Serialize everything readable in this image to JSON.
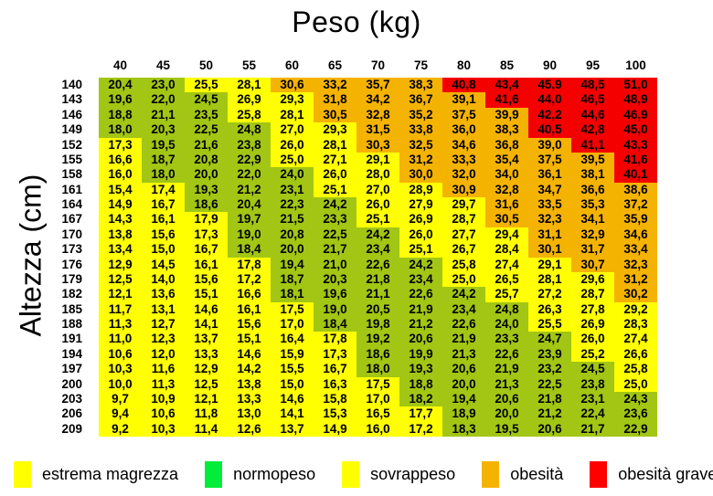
{
  "page": {
    "title": "Peso (kg)",
    "y_axis_label": "Altezza (cm)"
  },
  "chart_data": {
    "type": "heatmap",
    "title": "Peso (kg)",
    "xlabel": "Peso (kg)",
    "ylabel": "Altezza (cm)",
    "legend_position": "bottom",
    "grid": false,
    "columns": [
      40,
      45,
      50,
      55,
      60,
      65,
      70,
      75,
      80,
      85,
      90,
      95,
      100
    ],
    "rows": [
      140,
      143,
      146,
      149,
      152,
      155,
      158,
      161,
      164,
      167,
      170,
      173,
      176,
      179,
      182,
      185,
      188,
      191,
      194,
      197,
      200,
      203,
      206,
      209
    ],
    "values": [
      [
        "20,4",
        "23,0",
        "25,5",
        "28,1",
        "30,6",
        "33,2",
        "35,7",
        "38,3",
        "40,8",
        "43,4",
        "45,9",
        "48,5",
        "51,0"
      ],
      [
        "19,6",
        "22,0",
        "24,5",
        "26,9",
        "29,3",
        "31,8",
        "34,2",
        "36,7",
        "39,1",
        "41,6",
        "44,0",
        "46,5",
        "48,9"
      ],
      [
        "18,8",
        "21,1",
        "23,5",
        "25,8",
        "28,1",
        "30,5",
        "32,8",
        "35,2",
        "37,5",
        "39,9",
        "42,2",
        "44,6",
        "46,9"
      ],
      [
        "18,0",
        "20,3",
        "22,5",
        "24,8",
        "27,0",
        "29,3",
        "31,5",
        "33,8",
        "36,0",
        "38,3",
        "40,5",
        "42,8",
        "45,0"
      ],
      [
        "17,3",
        "19,5",
        "21,6",
        "23,8",
        "26,0",
        "28,1",
        "30,3",
        "32,5",
        "34,6",
        "36,8",
        "39,0",
        "41,1",
        "43,3"
      ],
      [
        "16,6",
        "18,7",
        "20,8",
        "22,9",
        "25,0",
        "27,1",
        "29,1",
        "31,2",
        "33,3",
        "35,4",
        "37,5",
        "39,5",
        "41,6"
      ],
      [
        "16,0",
        "18,0",
        "20,0",
        "22,0",
        "24,0",
        "26,0",
        "28,0",
        "30,0",
        "32,0",
        "34,0",
        "36,1",
        "38,1",
        "40,1"
      ],
      [
        "15,4",
        "17,4",
        "19,3",
        "21,2",
        "23,1",
        "25,1",
        "27,0",
        "28,9",
        "30,9",
        "32,8",
        "34,7",
        "36,6",
        "38,6"
      ],
      [
        "14,9",
        "16,7",
        "18,6",
        "20,4",
        "22,3",
        "24,2",
        "26,0",
        "27,9",
        "29,7",
        "31,6",
        "33,5",
        "35,3",
        "37,2"
      ],
      [
        "14,3",
        "16,1",
        "17,9",
        "19,7",
        "21,5",
        "23,3",
        "25,1",
        "26,9",
        "28,7",
        "30,5",
        "32,3",
        "34,1",
        "35,9"
      ],
      [
        "13,8",
        "15,6",
        "17,3",
        "19,0",
        "20,8",
        "22,5",
        "24,2",
        "26,0",
        "27,7",
        "29,4",
        "31,1",
        "32,9",
        "34,6"
      ],
      [
        "13,4",
        "15,0",
        "16,7",
        "18,4",
        "20,0",
        "21,7",
        "23,4",
        "25,1",
        "26,7",
        "28,4",
        "30,1",
        "31,7",
        "33,4"
      ],
      [
        "12,9",
        "14,5",
        "16,1",
        "17,8",
        "19,4",
        "21,0",
        "22,6",
        "24,2",
        "25,8",
        "27,4",
        "29,1",
        "30,7",
        "32,3"
      ],
      [
        "12,5",
        "14,0",
        "15,6",
        "17,2",
        "18,7",
        "20,3",
        "21,8",
        "23,4",
        "25,0",
        "26,5",
        "28,1",
        "29,6",
        "31,2"
      ],
      [
        "12,1",
        "13,6",
        "15,1",
        "16,6",
        "18,1",
        "19,6",
        "21,1",
        "22,6",
        "24,2",
        "25,7",
        "27,2",
        "28,7",
        "30,2"
      ],
      [
        "11,7",
        "13,1",
        "14,6",
        "16,1",
        "17,5",
        "19,0",
        "20,5",
        "21,9",
        "23,4",
        "24,8",
        "26,3",
        "27,8",
        "29,2"
      ],
      [
        "11,3",
        "12,7",
        "14,1",
        "15,6",
        "17,0",
        "18,4",
        "19,8",
        "21,2",
        "22,6",
        "24,0",
        "25,5",
        "26,9",
        "28,3"
      ],
      [
        "11,0",
        "12,3",
        "13,7",
        "15,1",
        "16,4",
        "17,8",
        "19,2",
        "20,6",
        "21,9",
        "23,3",
        "24,7",
        "26,0",
        "27,4"
      ],
      [
        "10,6",
        "12,0",
        "13,3",
        "14,6",
        "15,9",
        "17,3",
        "18,6",
        "19,9",
        "21,3",
        "22,6",
        "23,9",
        "25,2",
        "26,6"
      ],
      [
        "10,3",
        "11,6",
        "12,9",
        "14,2",
        "15,5",
        "16,7",
        "18,0",
        "19,3",
        "20,6",
        "21,9",
        "23,2",
        "24,5",
        "25,8"
      ],
      [
        "10,0",
        "11,3",
        "12,5",
        "13,8",
        "15,0",
        "16,3",
        "17,5",
        "18,8",
        "20,0",
        "21,3",
        "22,5",
        "23,8",
        "25,0"
      ],
      [
        "9,7",
        "10,9",
        "12,1",
        "13,3",
        "14,6",
        "15,8",
        "17,0",
        "18,2",
        "19,4",
        "20,6",
        "21,8",
        "23,1",
        "24,3"
      ],
      [
        "9,4",
        "10,6",
        "11,8",
        "13,0",
        "14,1",
        "15,3",
        "16,5",
        "17,7",
        "18,9",
        "20,0",
        "21,2",
        "22,4",
        "23,6"
      ],
      [
        "9,2",
        "10,3",
        "11,4",
        "12,6",
        "13,7",
        "14,9",
        "16,0",
        "17,2",
        "18,3",
        "19,5",
        "20,6",
        "21,7",
        "22,9"
      ]
    ],
    "color_scale": [
      {
        "label": "estrema magrezza",
        "upper_bound_exclusive": 18,
        "cell_color": "#FFFF00"
      },
      {
        "label": "normopeso",
        "upper_bound_exclusive": 25,
        "cell_color": "#A2C613"
      },
      {
        "label": "sovrappeso",
        "upper_bound_exclusive": 30,
        "cell_color": "#FFFF00"
      },
      {
        "label": "obesità",
        "upper_bound_exclusive": 40,
        "cell_color": "#F5B301"
      },
      {
        "label": "obesità grave",
        "upper_bound_exclusive": null,
        "cell_color": "#F40000"
      }
    ]
  },
  "legend": {
    "items": [
      {
        "label": "estrema magrezza",
        "color": "#FFFF00"
      },
      {
        "label": "normopeso",
        "color": "#00EE3A"
      },
      {
        "label": "sovrappeso",
        "color": "#FFFF00"
      },
      {
        "label": "obesità",
        "color": "#F5B301"
      },
      {
        "label": "obesità grave",
        "color": "#FF0000"
      }
    ]
  }
}
